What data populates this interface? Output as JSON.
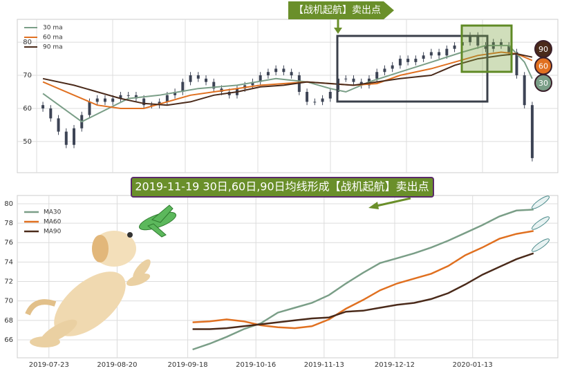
{
  "chart_data": [
    {
      "type": "candlestick",
      "title": "【战机起航】卖出点",
      "candle_color": "#3d4455",
      "xlim": [
        -3.3,
        66.3
      ],
      "ylim": [
        40.6,
        86.9
      ],
      "yticks": [
        50,
        60,
        70,
        80
      ],
      "grid": true,
      "legend": "upper left",
      "open": [
        61,
        60,
        57,
        53,
        49,
        54,
        58,
        62,
        63,
        62,
        63,
        64,
        64,
        63,
        61,
        61,
        62,
        64,
        65,
        68,
        70,
        69,
        68,
        66,
        65,
        64,
        66,
        67,
        68,
        70,
        71,
        72,
        71,
        70,
        65,
        62,
        62,
        63,
        65,
        69,
        69,
        68,
        67,
        69,
        71,
        72,
        73,
        75,
        74,
        75,
        76,
        77,
        76,
        78,
        79,
        80,
        82,
        79,
        78,
        80,
        79,
        77,
        70,
        61
      ],
      "high": [
        62,
        61,
        58,
        54,
        55,
        59,
        63,
        64,
        64,
        64,
        65,
        65,
        65,
        64,
        62,
        63,
        65,
        66,
        69,
        71,
        71,
        70,
        69,
        67,
        66,
        67,
        68,
        69,
        71,
        72,
        73,
        73,
        72,
        71,
        66,
        63,
        64,
        66,
        70,
        70,
        70,
        69,
        70,
        72,
        73,
        74,
        76,
        76,
        76,
        77,
        78,
        78,
        79,
        80,
        81,
        83,
        83,
        80,
        81,
        81,
        80,
        78,
        71,
        62
      ],
      "low": [
        59,
        56,
        52,
        48,
        48,
        53,
        57,
        61,
        61,
        61,
        62,
        63,
        62,
        60,
        60,
        60,
        61,
        63,
        64,
        67,
        68,
        67,
        65,
        64,
        63,
        63,
        65,
        66,
        67,
        69,
        70,
        70,
        69,
        64,
        61,
        61,
        61,
        62,
        64,
        68,
        67,
        66,
        66,
        68,
        70,
        71,
        72,
        73,
        73,
        74,
        75,
        75,
        75,
        77,
        78,
        79,
        78,
        77,
        77,
        78,
        76,
        69,
        60,
        44
      ],
      "close": [
        60,
        57,
        53,
        49,
        54,
        58,
        62,
        63,
        62,
        63,
        64,
        64,
        63,
        61,
        61,
        62,
        64,
        65,
        68,
        70,
        69,
        68,
        66,
        65,
        64,
        66,
        67,
        68,
        70,
        71,
        72,
        71,
        70,
        65,
        62,
        62,
        63,
        65,
        69,
        69,
        68,
        67,
        69,
        71,
        72,
        73,
        75,
        74,
        75,
        76,
        77,
        76,
        78,
        79,
        80,
        82,
        79,
        78,
        80,
        79,
        77,
        70,
        61,
        45
      ],
      "series": [
        {
          "name": "30 ma",
          "tag": "30",
          "color": "#7a9e87",
          "x": [
            0,
            5,
            11,
            15,
            20,
            25,
            30,
            34,
            37,
            39,
            42,
            46,
            50,
            54,
            57,
            60,
            62,
            63
          ],
          "values": [
            64.5,
            56,
            63,
            64,
            66,
            67,
            69,
            68,
            66,
            65,
            68,
            71,
            74,
            77,
            79,
            79,
            74,
            69
          ]
        },
        {
          "name": "60 ma",
          "tag": "60",
          "color": "#e07020",
          "x": [
            0,
            4,
            7,
            10,
            13,
            16,
            19,
            22,
            25,
            28,
            31,
            34,
            37,
            40,
            43,
            46,
            50,
            53,
            56,
            59,
            61,
            63
          ],
          "values": [
            68,
            64,
            61,
            60,
            60,
            62,
            64,
            65,
            66,
            67,
            67.5,
            68,
            67.5,
            67,
            67.5,
            70,
            72,
            74,
            76,
            77,
            76.5,
            74.5
          ]
        },
        {
          "name": "90 ma",
          "tag": "90",
          "color": "#4a2a1a",
          "x": [
            0,
            4,
            7,
            10,
            13,
            16,
            19,
            22,
            25,
            28,
            31,
            34,
            37,
            40,
            43,
            46,
            50,
            53,
            56,
            59,
            61,
            63
          ],
          "values": [
            69,
            67,
            65,
            63,
            61.5,
            61,
            62,
            64,
            65,
            66.5,
            67,
            68,
            67.5,
            67,
            68,
            69,
            70,
            73,
            75,
            76,
            76.5,
            75.5
          ]
        }
      ]
    },
    {
      "type": "line",
      "title": "2019-11-19 30日,60日,90日均线形成【战机起航】卖出点",
      "xlim": [
        "2019-07-10",
        "2020-02-17"
      ],
      "xticks": [
        "2019-07-23",
        "2019-08-20",
        "2019-09-18",
        "2019-10-16",
        "2019-11-13",
        "2019-12-12",
        "2020-01-13"
      ],
      "ylim": [
        64.15,
        80.85
      ],
      "yticks": [
        66,
        68,
        70,
        72,
        74,
        76,
        78,
        80
      ],
      "grid": true,
      "legend": "upper left",
      "x": [
        "2019-09-20",
        "2019-09-27",
        "2019-10-04",
        "2019-10-11",
        "2019-10-18",
        "2019-10-25",
        "2019-11-01",
        "2019-11-08",
        "2019-11-15",
        "2019-11-22",
        "2019-11-29",
        "2019-12-06",
        "2019-12-13",
        "2019-12-20",
        "2019-12-27",
        "2020-01-03",
        "2020-01-10",
        "2020-01-17",
        "2020-01-24",
        "2020-01-31",
        "2020-02-07"
      ],
      "series": [
        {
          "name": "MA30",
          "color": "#7a9e87",
          "values": [
            65.0,
            65.6,
            66.3,
            67.1,
            67.7,
            68.8,
            69.3,
            69.8,
            70.6,
            71.8,
            72.9,
            73.9,
            74.4,
            74.9,
            75.5,
            76.2,
            77.0,
            77.8,
            78.7,
            79.3,
            79.4
          ]
        },
        {
          "name": "MA60",
          "color": "#e07020",
          "values": [
            67.8,
            67.9,
            68.1,
            67.9,
            67.5,
            67.3,
            67.2,
            67.4,
            68.1,
            69.2,
            70.1,
            71.1,
            71.8,
            72.3,
            72.8,
            73.6,
            74.7,
            75.5,
            76.4,
            76.9,
            77.2
          ]
        },
        {
          "name": "MA90",
          "color": "#4a2a1a",
          "values": [
            67.1,
            67.1,
            67.2,
            67.4,
            67.6,
            67.8,
            68.0,
            68.2,
            68.3,
            68.9,
            69.0,
            69.3,
            69.6,
            69.8,
            70.2,
            70.8,
            71.7,
            72.7,
            73.5,
            74.3,
            74.9
          ]
        }
      ]
    }
  ]
}
